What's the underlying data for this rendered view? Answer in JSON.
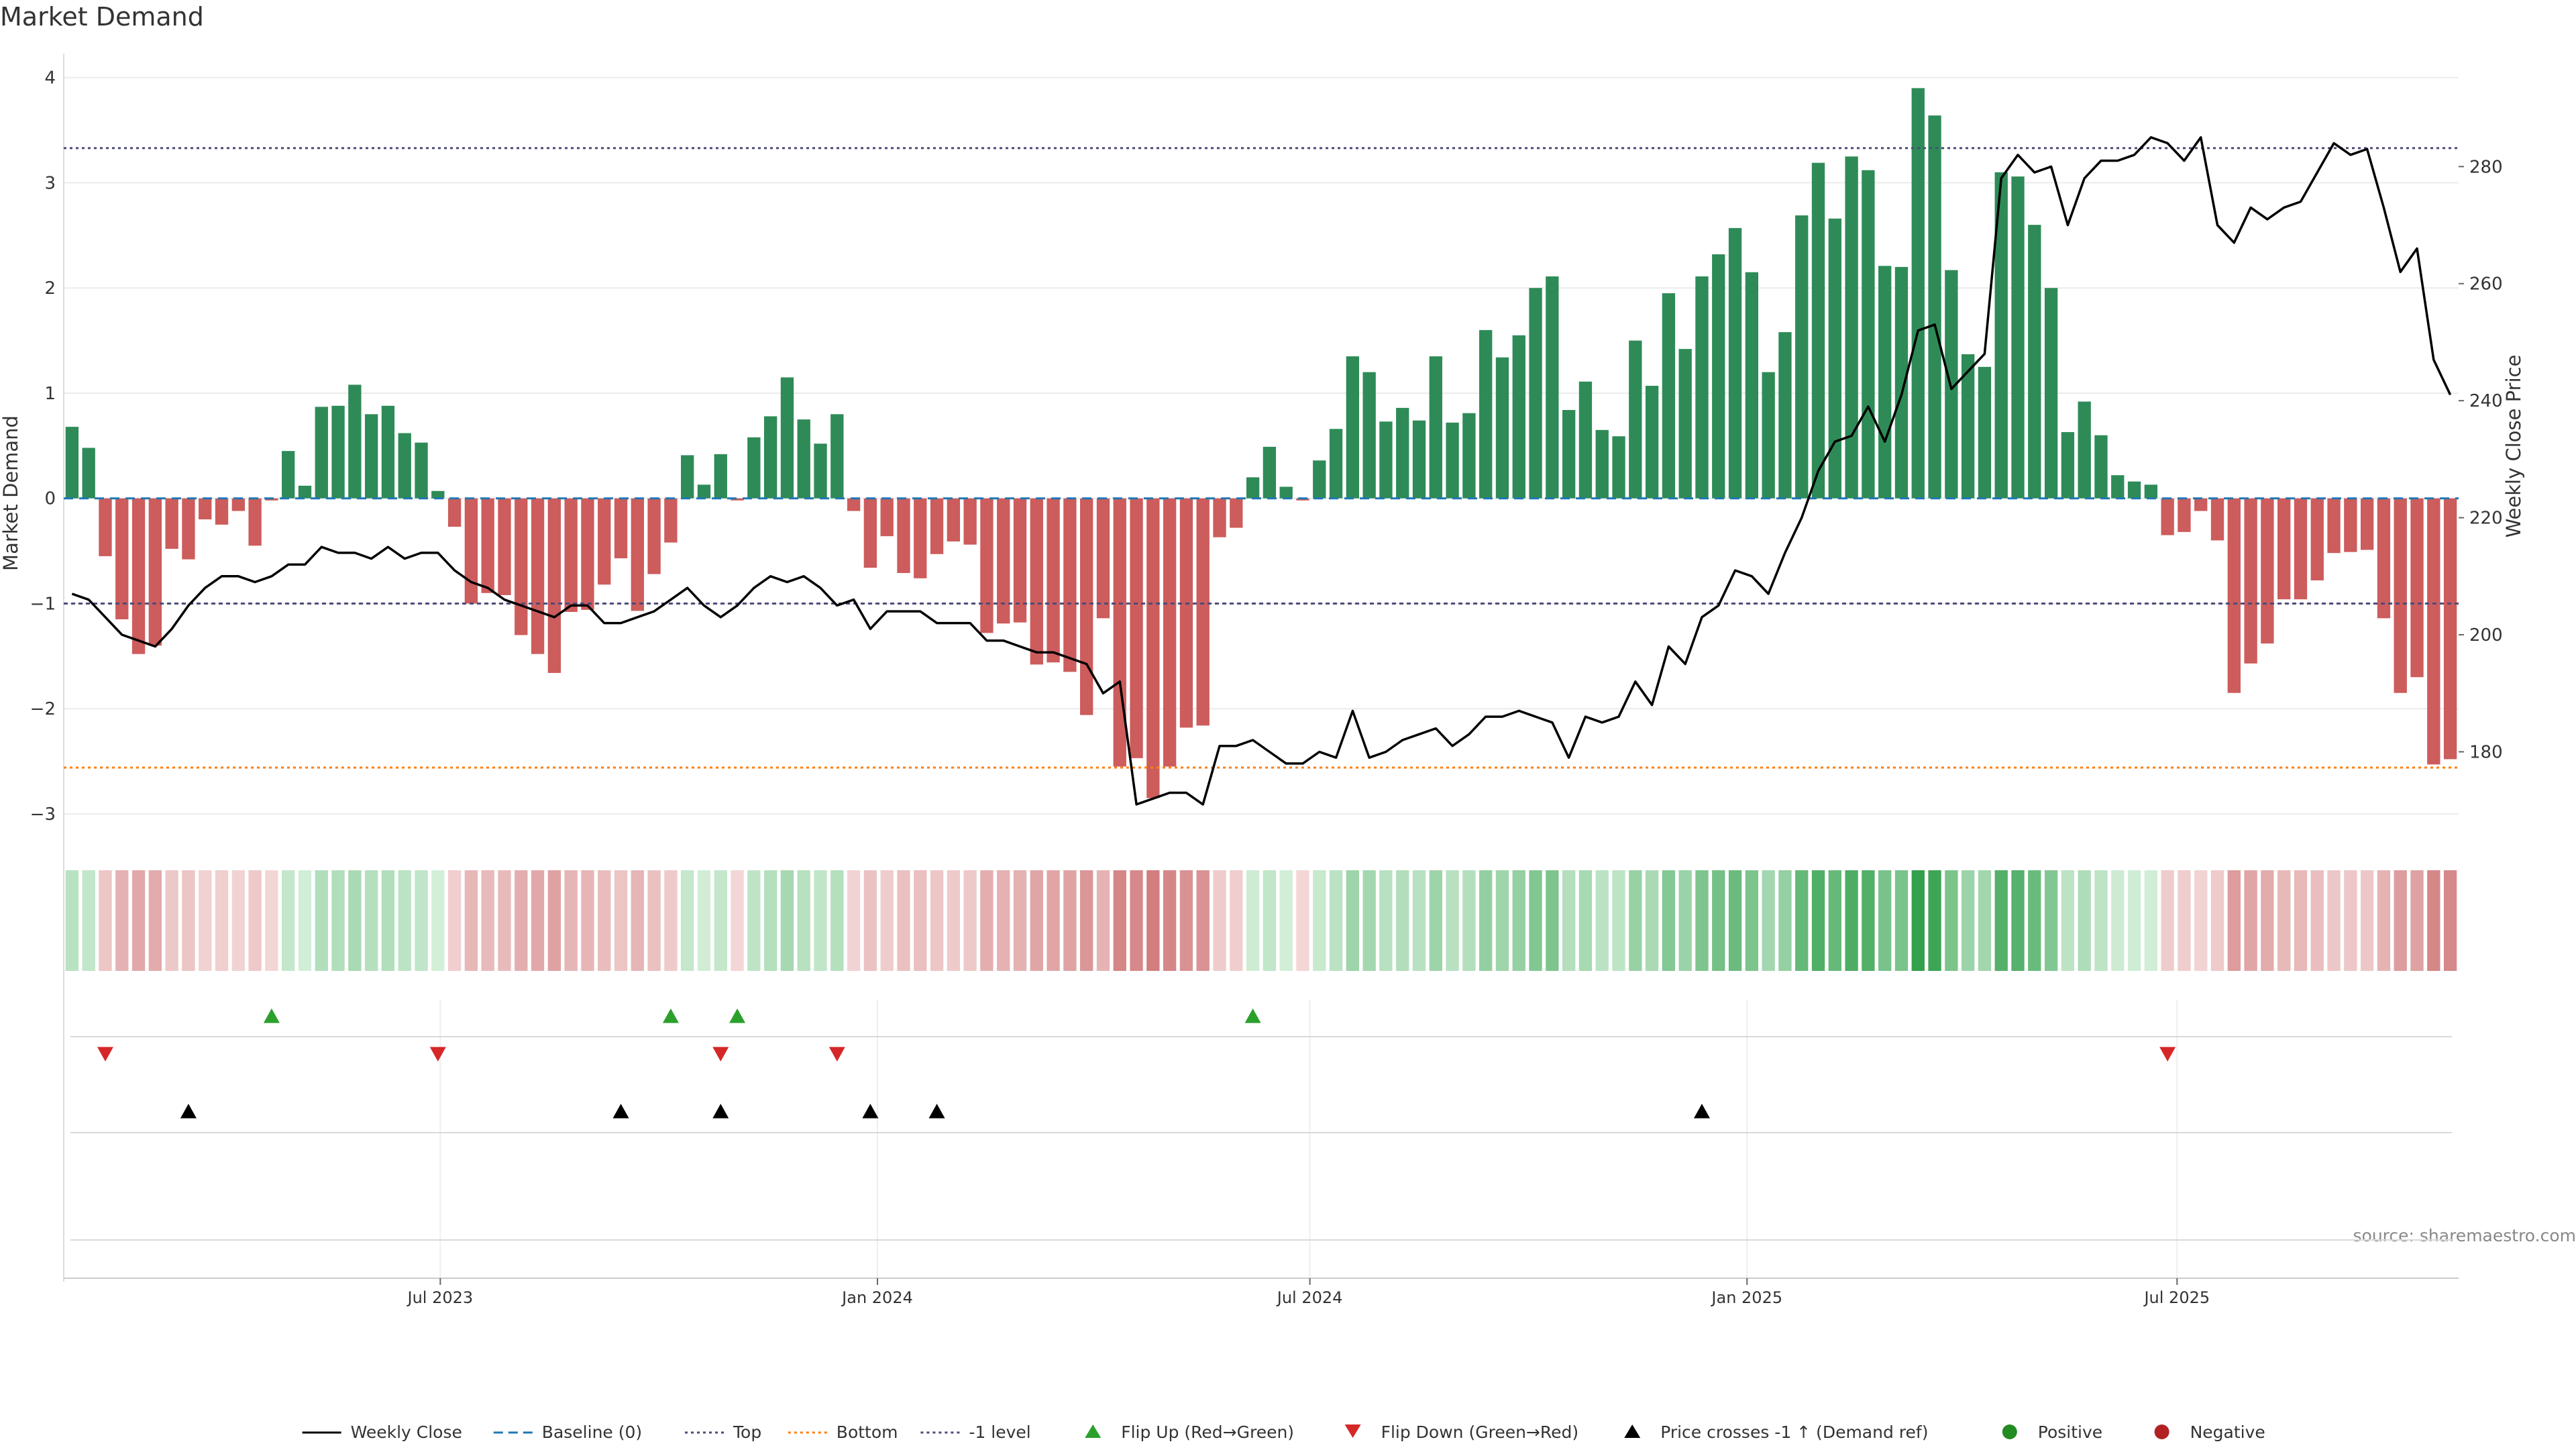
{
  "title": "Market Demand",
  "source": "source: sharemaestro.com",
  "colors": {
    "positive": "#2e8b57",
    "negative": "#cd5c5c",
    "price": "#000000",
    "baseline": "#1f77b4",
    "top": "#4c4c7a",
    "bottom": "#ff7f0e",
    "minus1": "#4c4c7a",
    "flip_up": "#2ca02c",
    "flip_down": "#d62728",
    "cross": "#000000",
    "positive_dot": "#228b22",
    "negative_dot": "#b22222"
  },
  "legend": {
    "items": [
      {
        "label": "Weekly Close",
        "kind": "line-solid",
        "color": "#000000"
      },
      {
        "label": "Baseline (0)",
        "kind": "line-dashed",
        "color": "#1f77b4"
      },
      {
        "label": "Top",
        "kind": "line-dotted",
        "color": "#4c4c7a"
      },
      {
        "label": "Bottom",
        "kind": "line-dotted",
        "color": "#ff7f0e"
      },
      {
        "label": "-1 level",
        "kind": "line-dotted",
        "color": "#4c4c7a"
      },
      {
        "label": "Flip Up (Red→Green)",
        "kind": "tri-up",
        "color": "#2ca02c"
      },
      {
        "label": "Flip Down (Green→Red)",
        "kind": "tri-down",
        "color": "#d62728"
      },
      {
        "label": "Price crosses -1 ↑ (Demand ref)",
        "kind": "tri-up",
        "color": "#000000"
      },
      {
        "label": "Positive",
        "kind": "dot",
        "color": "#228b22"
      },
      {
        "label": "Negative",
        "kind": "dot",
        "color": "#b22222"
      }
    ]
  },
  "chart_data": {
    "type": "bar",
    "ylabel": "Market Demand",
    "y2label": "Weekly Close Price",
    "ylim": [
      -3.3,
      4.1
    ],
    "y2lim": [
      164,
      297
    ],
    "yticks": [
      "4",
      "3",
      "2",
      "1",
      "0",
      "−1",
      "−2",
      "−3"
    ],
    "y2ticks": [
      "280",
      "260",
      "240",
      "220",
      "200",
      "180"
    ],
    "x_tick_labels": [
      "Jul 2023",
      "Jan 2024",
      "Jul 2024",
      "Jan 2025",
      "Jul 2025"
    ],
    "x_start": "2023-01-27",
    "reference_lines": {
      "baseline": 0,
      "top": 3.33,
      "bottom": -2.56,
      "minus1_level": -1
    },
    "grid": true,
    "legend_position": "bottom",
    "series": [
      {
        "name": "Market Demand",
        "values": [
          0.68,
          0.48,
          -0.55,
          -1.15,
          -1.48,
          -1.4,
          -0.48,
          -0.58,
          -0.2,
          -0.25,
          -0.12,
          -0.45,
          -0.02,
          0.45,
          0.12,
          0.87,
          0.88,
          1.08,
          0.8,
          0.88,
          0.62,
          0.53,
          0.07,
          -0.27,
          -1.0,
          -0.9,
          -0.92,
          -1.3,
          -1.48,
          -1.66,
          -1.08,
          -1.06,
          -0.82,
          -0.57,
          -1.07,
          -0.72,
          -0.42,
          0.41,
          0.13,
          0.42,
          -0.02,
          0.58,
          0.78,
          1.15,
          0.75,
          0.52,
          0.8,
          -0.12,
          -0.66,
          -0.36,
          -0.71,
          -0.76,
          -0.53,
          -0.41,
          -0.44,
          -1.28,
          -1.19,
          -1.18,
          -1.58,
          -1.56,
          -1.65,
          -2.06,
          -1.14,
          -2.55,
          -2.47,
          -2.85,
          -2.55,
          -2.18,
          -2.16,
          -0.37,
          -0.28,
          0.2,
          0.49,
          0.11,
          -0.02,
          0.36,
          0.66,
          1.35,
          1.2,
          0.73,
          0.86,
          0.74,
          1.35,
          0.72,
          0.81,
          1.6,
          1.34,
          1.55,
          2.0,
          2.11,
          0.84,
          1.11,
          0.65,
          0.59,
          1.5,
          1.07,
          1.95,
          1.42,
          2.11,
          2.32,
          2.57,
          2.15,
          1.2,
          1.58,
          2.69,
          3.19,
          2.66,
          3.25,
          3.12,
          2.21,
          2.2,
          3.9,
          3.64,
          2.17,
          1.37,
          1.25,
          3.1,
          3.06,
          2.6,
          2.0,
          0.63,
          0.92,
          0.6,
          0.22,
          0.16,
          0.13,
          -0.35,
          -0.32,
          -0.12,
          -0.4,
          -1.85,
          -1.57,
          -1.38,
          -0.96,
          -0.96,
          -0.78,
          -0.52,
          -0.51,
          -0.49,
          -1.14,
          -1.85,
          -1.7,
          -2.53,
          -2.48
        ]
      },
      {
        "name": "Weekly Close",
        "axis": "right",
        "values": [
          207,
          206,
          203,
          200,
          199,
          198,
          201,
          205,
          208,
          210,
          210,
          209,
          210,
          212,
          212,
          215,
          214,
          214,
          213,
          215,
          213,
          214,
          214,
          211,
          209,
          208,
          206,
          205,
          204,
          203,
          205,
          205,
          202,
          202,
          203,
          204,
          206,
          208,
          205,
          203,
          205,
          208,
          210,
          209,
          210,
          208,
          205,
          206,
          201,
          204,
          204,
          204,
          202,
          202,
          202,
          199,
          199,
          198,
          197,
          197,
          196,
          195,
          190,
          192,
          171,
          172,
          173,
          173,
          171,
          181,
          181,
          182,
          180,
          178,
          178,
          180,
          179,
          187,
          179,
          180,
          182,
          183,
          184,
          181,
          183,
          186,
          186,
          187,
          186,
          185,
          179,
          186,
          185,
          186,
          192,
          188,
          198,
          195,
          203,
          205,
          211,
          210,
          207,
          214,
          220,
          228,
          233,
          234,
          239,
          233,
          241,
          252,
          253,
          242,
          245,
          248,
          278,
          282,
          279,
          280,
          270,
          278,
          281,
          281,
          282,
          285,
          284,
          281,
          285,
          270,
          267,
          273,
          271,
          273,
          274,
          279,
          284,
          282,
          283,
          273,
          262,
          266,
          247,
          241
        ]
      }
    ],
    "events": {
      "flip_up_weeks": [
        12,
        36,
        40,
        71
      ],
      "flip_down_weeks": [
        2,
        22,
        39,
        46,
        126
      ],
      "price_cross_weeks": [
        7,
        33,
        39,
        48,
        52,
        98
      ]
    }
  }
}
